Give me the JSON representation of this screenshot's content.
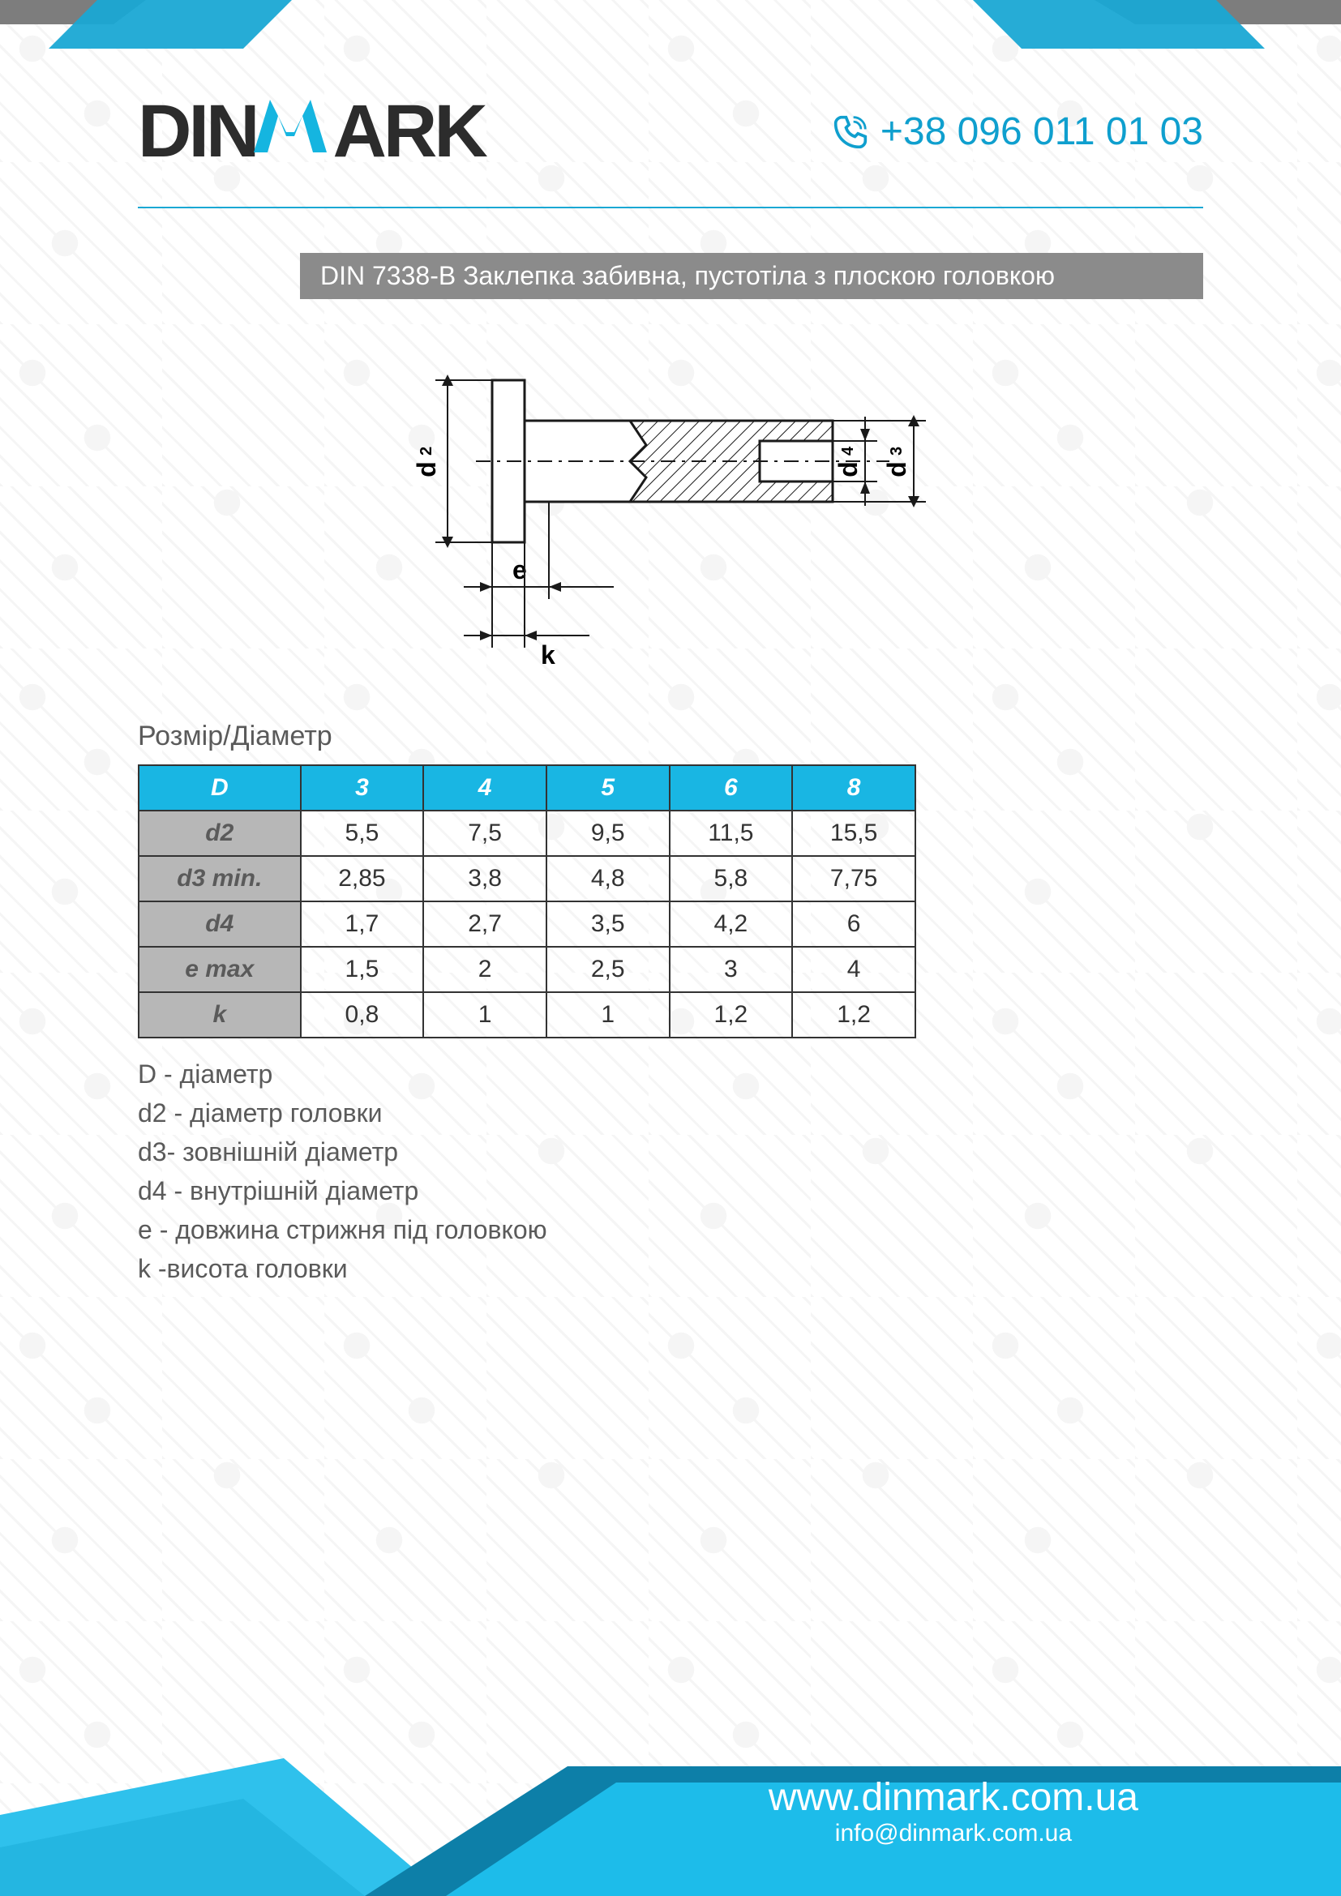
{
  "brand": {
    "name_part1": "DIN",
    "name_m": "M",
    "name_part2": "ARK"
  },
  "contact": {
    "phone": "+38 096 011 01 03"
  },
  "title": "DIN 7338-B Заклепка забивна, пустотіла з плоскою головкою",
  "diagram": {
    "labels": {
      "d2": "d₂",
      "d3": "d₃",
      "d4": "d₄",
      "e": "e",
      "k": "k"
    },
    "colors": {
      "stroke": "#1a1a1a",
      "hatch": "#1a1a1a",
      "background": "#ffffff"
    },
    "stroke_width": 3
  },
  "table": {
    "title": "Розмір/Діаметр",
    "header_color": "#19b6e3",
    "label_color": "#b7b7b7",
    "border_color": "#333333",
    "text_color": "#333333",
    "columns": [
      "D",
      "3",
      "4",
      "5",
      "6",
      "8"
    ],
    "rows": [
      {
        "label": "d2",
        "values": [
          "5,5",
          "7,5",
          "9,5",
          "11,5",
          "15,5"
        ]
      },
      {
        "label": "d3 min.",
        "values": [
          "2,85",
          "3,8",
          "4,8",
          "5,8",
          "7,75"
        ]
      },
      {
        "label": "d4",
        "values": [
          "1,7",
          "2,7",
          "3,5",
          "4,2",
          "6"
        ]
      },
      {
        "label": "e max",
        "values": [
          "1,5",
          "2",
          "2,5",
          "3",
          "4"
        ]
      },
      {
        "label": "k",
        "values": [
          "0,8",
          "1",
          "1",
          "1,2",
          "1,2"
        ]
      }
    ]
  },
  "legend": [
    "D - діаметр",
    "d2 - діаметр головки",
    "d3- зовнішній діаметр",
    "d4 - внутрішній діаметр",
    "е - довжина стрижня під головкою",
    "k -висота головки"
  ],
  "footer": {
    "url": "www.dinmark.com.ua",
    "email": "info@dinmark.com.ua",
    "colors": {
      "blue_light": "#1dbcea",
      "blue_dark": "#0d7fa8",
      "grey": "#6e6e6e"
    }
  },
  "top_deco": {
    "blue": "#1aa8d4",
    "grey": "#7d7d7d"
  }
}
